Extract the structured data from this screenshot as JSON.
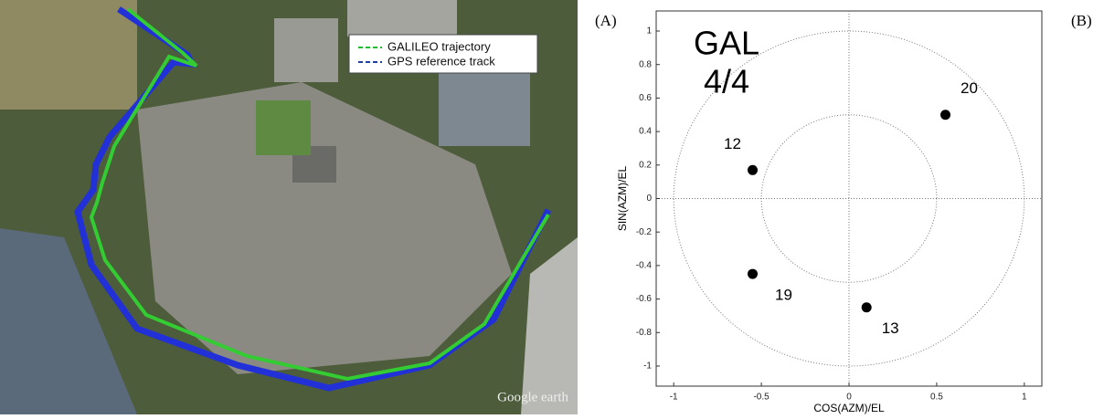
{
  "panels": [
    "(A)",
    "(B)"
  ],
  "image": {
    "legend": [
      "GALILEO trajectory",
      "GPS reference track"
    ],
    "legend_colors": [
      "#22bb33",
      "#1f3f99"
    ],
    "watermark": "Google earth"
  },
  "chart_data": {
    "type": "scatter",
    "title": [
      "GAL",
      "4/4"
    ],
    "x_label": "COS(AZM)/EL",
    "y_label": "SIN(AZM)/EL",
    "series": [
      {
        "color": "#000000",
        "labels": [
          "12",
          "20",
          "19",
          "13"
        ],
        "x": [
          -0.55,
          0.55,
          -0.55,
          0.1
        ],
        "y": [
          0.17,
          0.5,
          -0.45,
          -0.65
        ]
      }
    ],
    "rings": [
      0.5,
      1
    ],
    "xlim": [
      -1.1,
      1.1
    ],
    "ylim": [
      -1.12,
      1.12
    ],
    "xticks": [
      -1,
      -0.5,
      0,
      0.5,
      1
    ],
    "yticks": [
      -1,
      -0.8,
      -0.6,
      -0.4,
      -0.2,
      0,
      0.2,
      0.4,
      0.6,
      0.8,
      1
    ]
  }
}
